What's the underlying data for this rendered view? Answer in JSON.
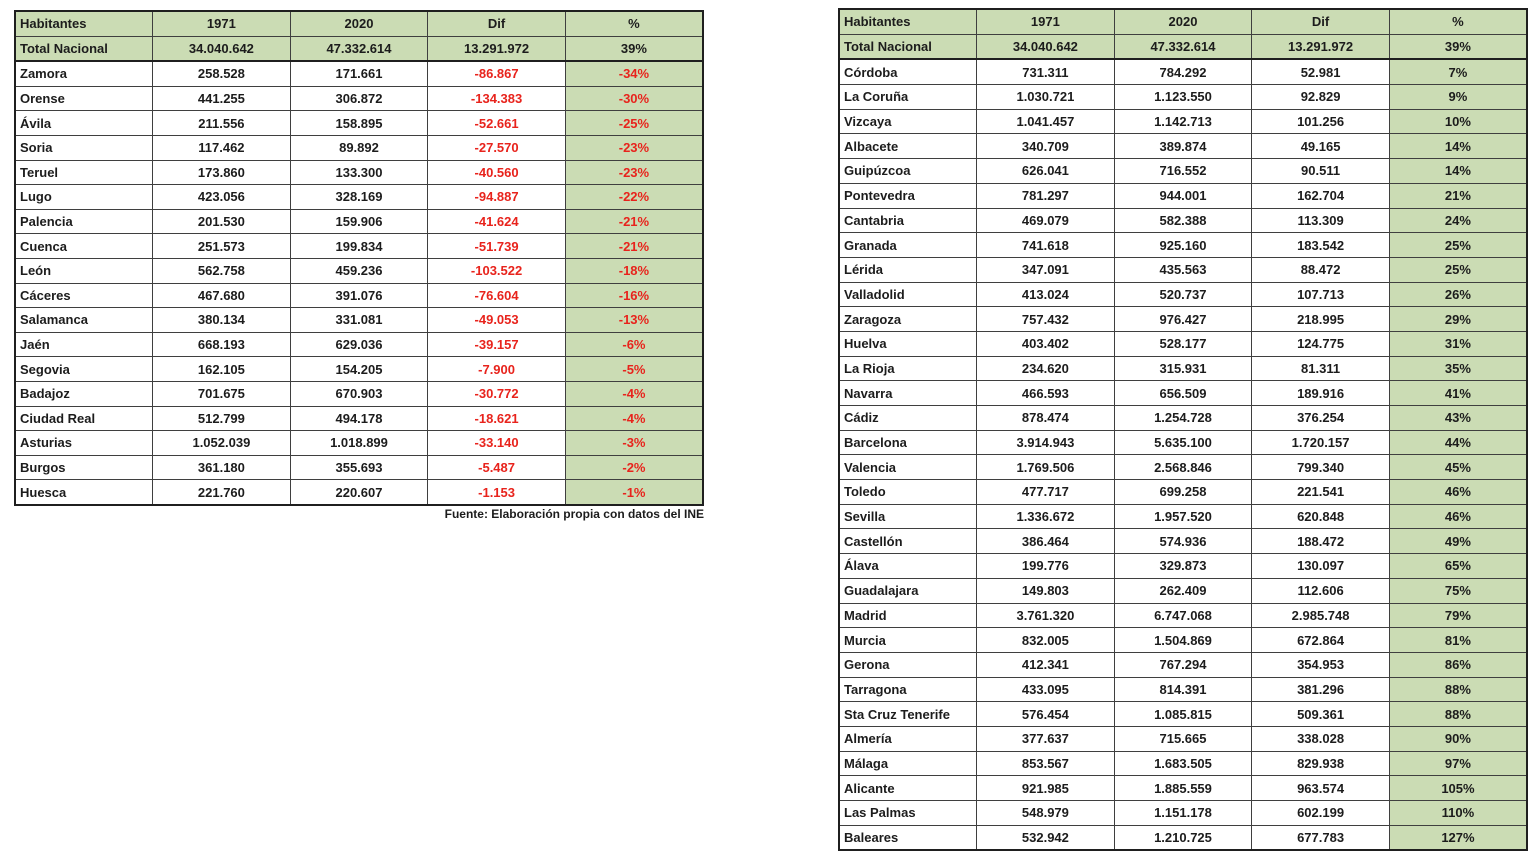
{
  "colors": {
    "background": "#ffffff",
    "green": "#cbdcb4",
    "red": "#e8231c",
    "text": "#1c1c1c",
    "border": "#3f3f3f",
    "outer": "#1f1f1f"
  },
  "footnote": "Fuente: Elaboración propia con datos del INE",
  "chart_data": [
    {
      "type": "table",
      "name": "provinces-population-decline",
      "columns": [
        "Habitantes",
        "1971",
        "2020",
        "Dif",
        "%"
      ],
      "total_row": [
        "Total Nacional",
        "34.040.642",
        "47.332.614",
        "13.291.972",
        "39%"
      ],
      "negative_values_red": true,
      "rows": [
        [
          "Zamora",
          "258.528",
          "171.661",
          "-86.867",
          "-34%"
        ],
        [
          "Orense",
          "441.255",
          "306.872",
          "-134.383",
          "-30%"
        ],
        [
          "Ávila",
          "211.556",
          "158.895",
          "-52.661",
          "-25%"
        ],
        [
          "Soria",
          "117.462",
          "89.892",
          "-27.570",
          "-23%"
        ],
        [
          "Teruel",
          "173.860",
          "133.300",
          "-40.560",
          "-23%"
        ],
        [
          "Lugo",
          "423.056",
          "328.169",
          "-94.887",
          "-22%"
        ],
        [
          "Palencia",
          "201.530",
          "159.906",
          "-41.624",
          "-21%"
        ],
        [
          "Cuenca",
          "251.573",
          "199.834",
          "-51.739",
          "-21%"
        ],
        [
          "León",
          "562.758",
          "459.236",
          "-103.522",
          "-18%"
        ],
        [
          "Cáceres",
          "467.680",
          "391.076",
          "-76.604",
          "-16%"
        ],
        [
          "Salamanca",
          "380.134",
          "331.081",
          "-49.053",
          "-13%"
        ],
        [
          "Jaén",
          "668.193",
          "629.036",
          "-39.157",
          "-6%"
        ],
        [
          "Segovia",
          "162.105",
          "154.205",
          "-7.900",
          "-5%"
        ],
        [
          "Badajoz",
          "701.675",
          "670.903",
          "-30.772",
          "-4%"
        ],
        [
          "Ciudad Real",
          "512.799",
          "494.178",
          "-18.621",
          "-4%"
        ],
        [
          "Asturias",
          "1.052.039",
          "1.018.899",
          "-33.140",
          "-3%"
        ],
        [
          "Burgos",
          "361.180",
          "355.693",
          "-5.487",
          "-2%"
        ],
        [
          "Huesca",
          "221.760",
          "220.607",
          "-1.153",
          "-1%"
        ]
      ]
    },
    {
      "type": "table",
      "name": "provinces-population-growth",
      "columns": [
        "Habitantes",
        "1971",
        "2020",
        "Dif",
        "%"
      ],
      "total_row": [
        "Total Nacional",
        "34.040.642",
        "47.332.614",
        "13.291.972",
        "39%"
      ],
      "negative_values_red": false,
      "rows": [
        [
          "Córdoba",
          "731.311",
          "784.292",
          "52.981",
          "7%"
        ],
        [
          "La Coruña",
          "1.030.721",
          "1.123.550",
          "92.829",
          "9%"
        ],
        [
          "Vizcaya",
          "1.041.457",
          "1.142.713",
          "101.256",
          "10%"
        ],
        [
          "Albacete",
          "340.709",
          "389.874",
          "49.165",
          "14%"
        ],
        [
          "Guipúzcoa",
          "626.041",
          "716.552",
          "90.511",
          "14%"
        ],
        [
          "Pontevedra",
          "781.297",
          "944.001",
          "162.704",
          "21%"
        ],
        [
          "Cantabria",
          "469.079",
          "582.388",
          "113.309",
          "24%"
        ],
        [
          "Granada",
          "741.618",
          "925.160",
          "183.542",
          "25%"
        ],
        [
          "Lérida",
          "347.091",
          "435.563",
          "88.472",
          "25%"
        ],
        [
          "Valladolid",
          "413.024",
          "520.737",
          "107.713",
          "26%"
        ],
        [
          "Zaragoza",
          "757.432",
          "976.427",
          "218.995",
          "29%"
        ],
        [
          "Huelva",
          "403.402",
          "528.177",
          "124.775",
          "31%"
        ],
        [
          "La Rioja",
          "234.620",
          "315.931",
          "81.311",
          "35%"
        ],
        [
          "Navarra",
          "466.593",
          "656.509",
          "189.916",
          "41%"
        ],
        [
          "Cádiz",
          "878.474",
          "1.254.728",
          "376.254",
          "43%"
        ],
        [
          "Barcelona",
          "3.914.943",
          "5.635.100",
          "1.720.157",
          "44%"
        ],
        [
          "Valencia",
          "1.769.506",
          "2.568.846",
          "799.340",
          "45%"
        ],
        [
          "Toledo",
          "477.717",
          "699.258",
          "221.541",
          "46%"
        ],
        [
          "Sevilla",
          "1.336.672",
          "1.957.520",
          "620.848",
          "46%"
        ],
        [
          "Castellón",
          "386.464",
          "574.936",
          "188.472",
          "49%"
        ],
        [
          "Álava",
          "199.776",
          "329.873",
          "130.097",
          "65%"
        ],
        [
          "Guadalajara",
          "149.803",
          "262.409",
          "112.606",
          "75%"
        ],
        [
          "Madrid",
          "3.761.320",
          "6.747.068",
          "2.985.748",
          "79%"
        ],
        [
          "Murcia",
          "832.005",
          "1.504.869",
          "672.864",
          "81%"
        ],
        [
          "Gerona",
          "412.341",
          "767.294",
          "354.953",
          "86%"
        ],
        [
          "Tarragona",
          "433.095",
          "814.391",
          "381.296",
          "88%"
        ],
        [
          "Sta Cruz Tenerife",
          "576.454",
          "1.085.815",
          "509.361",
          "88%"
        ],
        [
          "Almería",
          "377.637",
          "715.665",
          "338.028",
          "90%"
        ],
        [
          "Málaga",
          "853.567",
          "1.683.505",
          "829.938",
          "97%"
        ],
        [
          "Alicante",
          "921.985",
          "1.885.559",
          "963.574",
          "105%"
        ],
        [
          "Las Palmas",
          "548.979",
          "1.151.178",
          "602.199",
          "110%"
        ],
        [
          "Baleares",
          "532.942",
          "1.210.725",
          "677.783",
          "127%"
        ]
      ]
    }
  ]
}
